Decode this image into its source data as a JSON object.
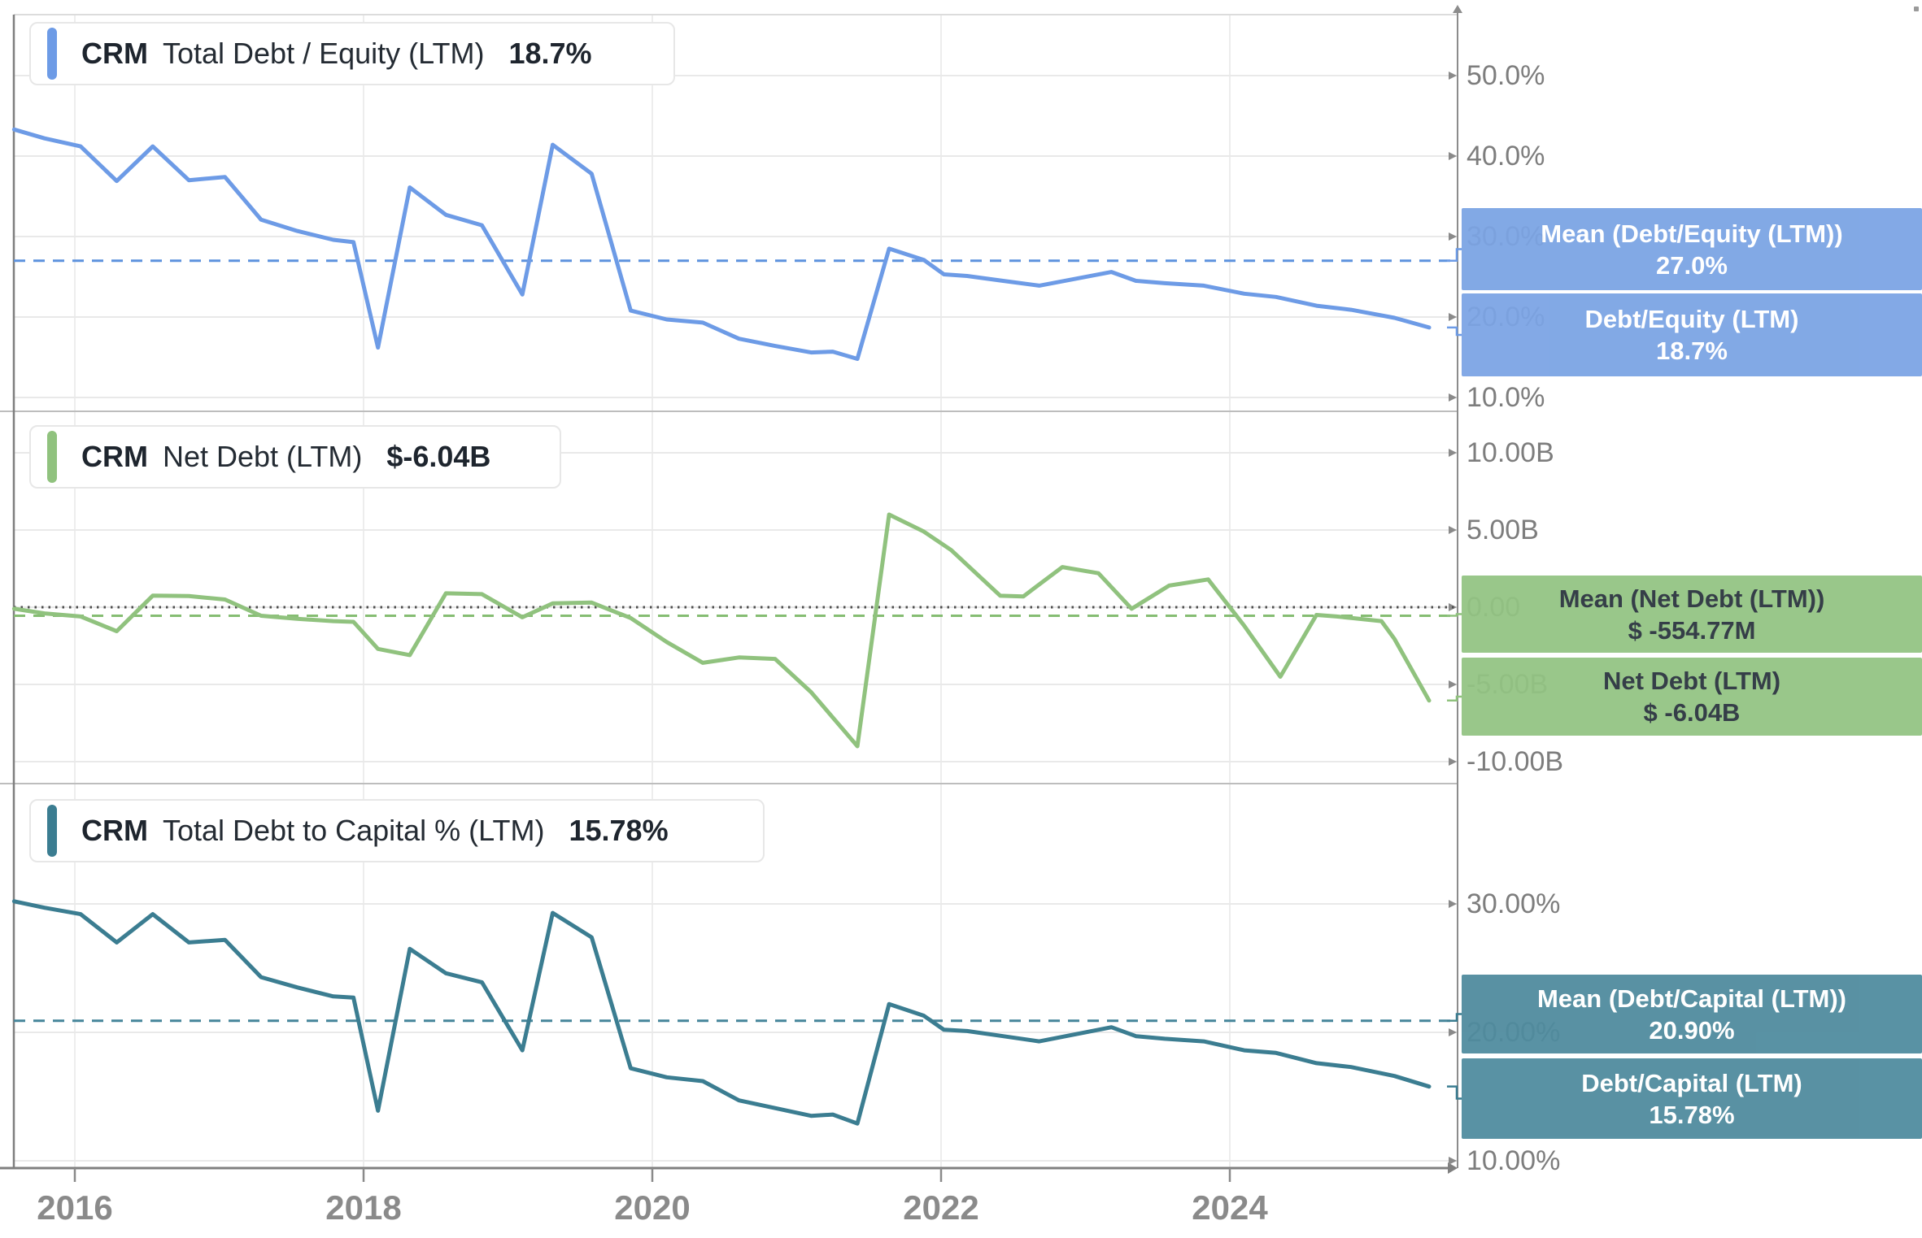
{
  "chart_data": [
    {
      "type": "line",
      "panel": "debt-equity",
      "legend": {
        "ticker": "CRM",
        "metric": "Total Debt / Equity (LTM)",
        "value": "18.7%"
      },
      "line_color": "#6d9be6",
      "dash_color": "#5d92de",
      "box_bg": "#7ba4e4",
      "box_text_color": "#ffffff",
      "ylabel": "Debt/Equity (LTM) %",
      "ylim": [
        10,
        50
      ],
      "grid": true,
      "y_ticks": [
        {
          "v": 50,
          "label": "50.0%"
        },
        {
          "v": 40,
          "label": "40.0%"
        },
        {
          "v": 30,
          "label": "30.0%"
        },
        {
          "v": 20,
          "label": "20.0%"
        },
        {
          "v": 10,
          "label": "10.0%"
        }
      ],
      "mean_line": {
        "value": 27.0,
        "style": "dashed",
        "label": "Mean (Debt/Equity (LTM))",
        "label_value": "27.0%"
      },
      "last_label": {
        "label": "Debt/Equity (LTM)",
        "label_value": "18.7%"
      },
      "zero_line": false,
      "series": {
        "x_unit": "decimal_year",
        "points": [
          [
            2015.58,
            43.3
          ],
          [
            2015.79,
            42.2
          ],
          [
            2016.04,
            41.2
          ],
          [
            2016.29,
            36.9
          ],
          [
            2016.54,
            41.2
          ],
          [
            2016.79,
            37.0
          ],
          [
            2017.04,
            37.4
          ],
          [
            2017.29,
            32.1
          ],
          [
            2017.54,
            30.7
          ],
          [
            2017.79,
            29.6
          ],
          [
            2017.93,
            29.3
          ],
          [
            2018.1,
            16.2
          ],
          [
            2018.32,
            36.1
          ],
          [
            2018.57,
            32.7
          ],
          [
            2018.82,
            31.4
          ],
          [
            2019.1,
            22.8
          ],
          [
            2019.31,
            41.4
          ],
          [
            2019.58,
            37.8
          ],
          [
            2019.85,
            20.8
          ],
          [
            2020.1,
            19.7
          ],
          [
            2020.35,
            19.3
          ],
          [
            2020.6,
            17.3
          ],
          [
            2020.85,
            16.4
          ],
          [
            2021.1,
            15.6
          ],
          [
            2021.25,
            15.7
          ],
          [
            2021.42,
            14.8
          ],
          [
            2021.64,
            28.5
          ],
          [
            2021.88,
            27.1
          ],
          [
            2022.02,
            25.3
          ],
          [
            2022.18,
            25.1
          ],
          [
            2022.43,
            24.5
          ],
          [
            2022.68,
            23.9
          ],
          [
            2023.18,
            25.6
          ],
          [
            2023.35,
            24.5
          ],
          [
            2023.55,
            24.2
          ],
          [
            2023.82,
            23.9
          ],
          [
            2024.1,
            22.9
          ],
          [
            2024.32,
            22.5
          ],
          [
            2024.6,
            21.4
          ],
          [
            2024.84,
            20.9
          ],
          [
            2025.14,
            19.9
          ],
          [
            2025.38,
            18.7
          ]
        ]
      }
    },
    {
      "type": "line",
      "panel": "net-debt",
      "legend": {
        "ticker": "CRM",
        "metric": "Net Debt (LTM)",
        "value": "$-6.04B"
      },
      "line_color": "#90c27e",
      "dash_color": "#85bd72",
      "box_bg": "#93c483",
      "box_text_color": "#29333d",
      "ylabel": "Net Debt (LTM) $B",
      "ylim": [
        -10,
        10
      ],
      "grid": true,
      "y_ticks": [
        {
          "v": 10,
          "label": "10.00B"
        },
        {
          "v": 5,
          "label": "5.00B"
        },
        {
          "v": 0,
          "label": "0.00"
        },
        {
          "v": -5,
          "label": "-5.00B"
        },
        {
          "v": -10,
          "label": "-10.00B"
        }
      ],
      "mean_line": {
        "value": -0.55477,
        "style": "dashed",
        "label": "Mean (Net Debt (LTM))",
        "label_value": "$ -554.77M"
      },
      "last_label": {
        "label": "Net Debt (LTM)",
        "label_value": "$ -6.04B"
      },
      "zero_line": true,
      "series": {
        "x_unit": "decimal_year",
        "points": [
          [
            2015.58,
            -0.1
          ],
          [
            2015.79,
            -0.4
          ],
          [
            2016.04,
            -0.6
          ],
          [
            2016.29,
            -1.55
          ],
          [
            2016.54,
            0.75
          ],
          [
            2016.79,
            0.72
          ],
          [
            2017.04,
            0.5
          ],
          [
            2017.29,
            -0.55
          ],
          [
            2017.54,
            -0.75
          ],
          [
            2017.79,
            -0.9
          ],
          [
            2017.93,
            -0.95
          ],
          [
            2018.1,
            -2.7
          ],
          [
            2018.32,
            -3.1
          ],
          [
            2018.57,
            0.9
          ],
          [
            2018.82,
            0.85
          ],
          [
            2019.1,
            -0.65
          ],
          [
            2019.31,
            0.25
          ],
          [
            2019.58,
            0.3
          ],
          [
            2019.85,
            -0.7
          ],
          [
            2020.1,
            -2.25
          ],
          [
            2020.35,
            -3.6
          ],
          [
            2020.6,
            -3.25
          ],
          [
            2020.85,
            -3.35
          ],
          [
            2021.1,
            -5.5
          ],
          [
            2021.42,
            -9.0
          ],
          [
            2021.64,
            6.0
          ],
          [
            2021.88,
            4.9
          ],
          [
            2022.07,
            3.7
          ],
          [
            2022.41,
            0.74
          ],
          [
            2022.57,
            0.7
          ],
          [
            2022.84,
            2.6
          ],
          [
            2023.09,
            2.2
          ],
          [
            2023.32,
            -0.1
          ],
          [
            2023.58,
            1.4
          ],
          [
            2023.85,
            1.8
          ],
          [
            2024.1,
            -1.2
          ],
          [
            2024.35,
            -4.5
          ],
          [
            2024.6,
            -0.5
          ],
          [
            2024.74,
            -0.6
          ],
          [
            2025.05,
            -0.9
          ],
          [
            2025.14,
            -2.05
          ],
          [
            2025.38,
            -6.04
          ]
        ]
      }
    },
    {
      "type": "line",
      "panel": "debt-capital",
      "legend": {
        "ticker": "CRM",
        "metric": "Total Debt to Capital % (LTM)",
        "value": "15.78%"
      },
      "line_color": "#3b7d91",
      "dash_color": "#45859a",
      "box_bg": "#4f8b9e",
      "box_text_color": "#ffffff",
      "ylabel": "Debt/Capital (LTM) %",
      "ylim": [
        10,
        30
      ],
      "grid": true,
      "y_ticks": [
        {
          "v": 30,
          "label": "30.00%"
        },
        {
          "v": 20,
          "label": "20.00%"
        },
        {
          "v": 10,
          "label": "10.00%"
        }
      ],
      "mean_line": {
        "value": 20.9,
        "style": "dashed",
        "label": "Mean (Debt/Capital (LTM))",
        "label_value": "20.90%"
      },
      "last_label": {
        "label": "Debt/Capital (LTM)",
        "label_value": "15.78%"
      },
      "zero_line": false,
      "series": {
        "x_unit": "decimal_year",
        "points": [
          [
            2015.58,
            30.2
          ],
          [
            2015.79,
            29.7
          ],
          [
            2016.04,
            29.2
          ],
          [
            2016.29,
            27.0
          ],
          [
            2016.54,
            29.2
          ],
          [
            2016.79,
            27.0
          ],
          [
            2017.04,
            27.2
          ],
          [
            2017.29,
            24.3
          ],
          [
            2017.54,
            23.5
          ],
          [
            2017.79,
            22.8
          ],
          [
            2017.93,
            22.7
          ],
          [
            2018.1,
            13.9
          ],
          [
            2018.32,
            26.5
          ],
          [
            2018.57,
            24.6
          ],
          [
            2018.82,
            23.9
          ],
          [
            2019.1,
            18.6
          ],
          [
            2019.31,
            29.3
          ],
          [
            2019.58,
            27.4
          ],
          [
            2019.85,
            17.2
          ],
          [
            2020.1,
            16.5
          ],
          [
            2020.35,
            16.2
          ],
          [
            2020.6,
            14.7
          ],
          [
            2020.85,
            14.1
          ],
          [
            2021.1,
            13.5
          ],
          [
            2021.25,
            13.6
          ],
          [
            2021.42,
            12.9
          ],
          [
            2021.64,
            22.2
          ],
          [
            2021.88,
            21.3
          ],
          [
            2022.02,
            20.2
          ],
          [
            2022.18,
            20.1
          ],
          [
            2022.43,
            19.7
          ],
          [
            2022.68,
            19.3
          ],
          [
            2023.18,
            20.4
          ],
          [
            2023.35,
            19.7
          ],
          [
            2023.55,
            19.5
          ],
          [
            2023.82,
            19.3
          ],
          [
            2024.1,
            18.6
          ],
          [
            2024.32,
            18.4
          ],
          [
            2024.6,
            17.6
          ],
          [
            2024.84,
            17.3
          ],
          [
            2025.14,
            16.6
          ],
          [
            2025.38,
            15.78
          ]
        ]
      }
    }
  ],
  "x_axis": {
    "ticks": [
      {
        "t": 2016,
        "label": "2016"
      },
      {
        "t": 2018,
        "label": "2018"
      },
      {
        "t": 2020,
        "label": "2020"
      },
      {
        "t": 2022,
        "label": "2022"
      },
      {
        "t": 2024,
        "label": "2024"
      }
    ]
  }
}
